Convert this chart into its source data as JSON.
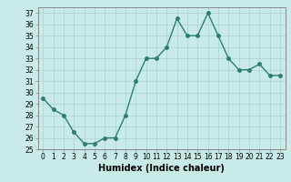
{
  "x": [
    0,
    1,
    2,
    3,
    4,
    5,
    6,
    7,
    8,
    9,
    10,
    11,
    12,
    13,
    14,
    15,
    16,
    17,
    18,
    19,
    20,
    21,
    22,
    23
  ],
  "y": [
    29.5,
    28.5,
    28.0,
    26.5,
    25.5,
    25.5,
    26.0,
    26.0,
    28.0,
    31.0,
    33.0,
    33.0,
    34.0,
    36.5,
    35.0,
    35.0,
    37.0,
    35.0,
    33.0,
    32.0,
    32.0,
    32.5,
    31.5,
    31.5
  ],
  "line_color": "#2e7d6e",
  "marker": "o",
  "marker_size": 2.5,
  "linewidth": 1.0,
  "bg_color": "#c8ebe8",
  "grid_color": "#a8d4d0",
  "xlabel": "Humidex (Indice chaleur)",
  "xlim": [
    -0.5,
    23.5
  ],
  "ylim": [
    25,
    37.5
  ],
  "yticks": [
    25,
    26,
    27,
    28,
    29,
    30,
    31,
    32,
    33,
    34,
    35,
    36,
    37
  ],
  "xticks": [
    0,
    1,
    2,
    3,
    4,
    5,
    6,
    7,
    8,
    9,
    10,
    11,
    12,
    13,
    14,
    15,
    16,
    17,
    18,
    19,
    20,
    21,
    22,
    23
  ],
  "tick_label_size": 5.5,
  "xlabel_size": 7.0,
  "spine_color": "#888888"
}
